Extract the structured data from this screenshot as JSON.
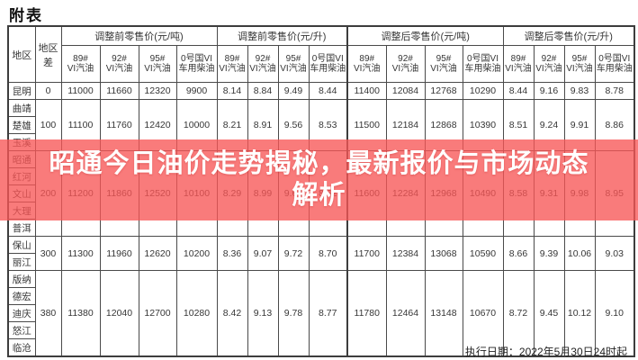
{
  "page": {
    "title": "附表",
    "exec_date": "执行日期：2022年5月30日24时起"
  },
  "banner": {
    "line1": "昭通今日油价走势揭秘，最新报价与市场动态",
    "line2": "解析",
    "bg_color": "#f75656",
    "text_color": "#ffffff"
  },
  "table": {
    "corner": {
      "region": "地区",
      "region_diff": "地区差"
    },
    "group_headers": [
      "调整前零售价(元/吨)",
      "调整前零售价(元/升)",
      "调整后零售价(元/吨)",
      "调整后零售价(元/升)"
    ],
    "fuel_headers": [
      "89#\nVI汽油",
      "92#\nVI汽油",
      "95#\nVI汽油",
      "0号国VI\n车用柴油"
    ],
    "row_groups": [
      {
        "regions": [
          "昆明"
        ],
        "region_diff": "0",
        "values": [
          "11000",
          "11660",
          "12320",
          "9900",
          "8.14",
          "8.84",
          "9.49",
          "8.44",
          "11400",
          "12084",
          "12768",
          "10290",
          "8.44",
          "9.16",
          "9.83",
          "8.78"
        ]
      },
      {
        "regions": [
          "曲靖",
          "楚雄",
          "玉溪"
        ],
        "region_diff": "100",
        "values": [
          "11100",
          "11760",
          "12420",
          "10000",
          "8.21",
          "8.91",
          "9.56",
          "8.53",
          "11500",
          "12184",
          "12868",
          "10390",
          "8.51",
          "9.24",
          "9.91",
          "8.86"
        ]
      },
      {
        "regions": [
          "昭通",
          "红河",
          "文山",
          "大理",
          "普洱"
        ],
        "region_diff": "200",
        "values": [
          "11200",
          "11860",
          "12520",
          "10100",
          "8.29",
          "8.99",
          "9.64",
          "8.62",
          "11600",
          "12284",
          "12968",
          "10490",
          "8.58",
          "9.31",
          "9.98",
          "8.95"
        ]
      },
      {
        "regions": [
          "保山",
          "丽江"
        ],
        "region_diff": "300",
        "values": [
          "11300",
          "11960",
          "12620",
          "10200",
          "8.36",
          "9.07",
          "9.72",
          "8.70",
          "11700",
          "12384",
          "13068",
          "10590",
          "8.66",
          "9.39",
          "10.06",
          "9.03"
        ]
      },
      {
        "regions": [
          "版纳",
          "德宏",
          "迪庆",
          "怒江",
          "临沧"
        ],
        "region_diff": "380",
        "values": [
          "11380",
          "12040",
          "12700",
          "10280",
          "8.42",
          "9.13",
          "9.78",
          "8.77",
          "11780",
          "12464",
          "13148",
          "10670",
          "8.72",
          "9.45",
          "10.12",
          "9.10"
        ]
      }
    ]
  }
}
